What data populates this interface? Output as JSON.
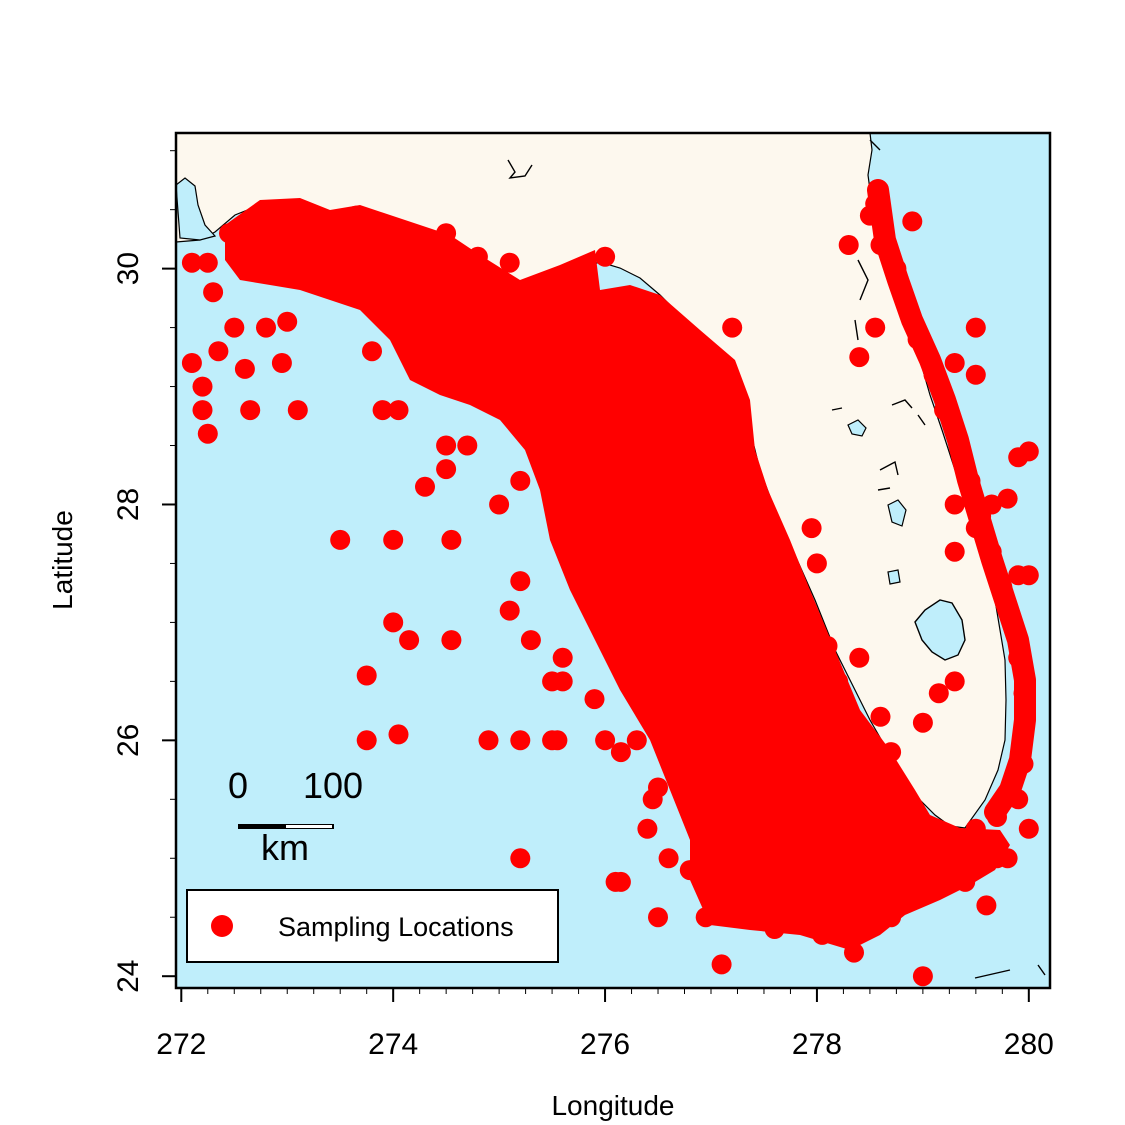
{
  "colors": {
    "sea": "#bfeefb",
    "land": "#fdf8ee",
    "point": "#ff0000",
    "coast": "#000000"
  },
  "axes": {
    "xlabel": "Longitude",
    "ylabel": "Latitude",
    "xlim": [
      271.95,
      280.2
    ],
    "ylim": [
      23.9,
      31.15
    ],
    "xticks": [
      272,
      274,
      276,
      278,
      280
    ],
    "yticks": [
      24,
      26,
      28,
      30
    ],
    "xtick_labels": [
      "272",
      "274",
      "276",
      "278",
      "280"
    ],
    "ytick_labels": [
      "24",
      "26",
      "28",
      "30"
    ]
  },
  "scale_bar": {
    "label_start": "0",
    "label_end": "100",
    "unit": "km"
  },
  "legend": {
    "label": "Sampling Locations",
    "placement": "bottom-left"
  },
  "chart_data": {
    "type": "scatter",
    "title": "",
    "xlabel": "Longitude",
    "ylabel": "Latitude",
    "xlim": [
      271.95,
      280.2
    ],
    "ylim": [
      23.9,
      31.15
    ],
    "grid": false,
    "series": [
      {
        "name": "Sampling Locations",
        "points": [
          [
            272.1,
            29.2
          ],
          [
            272.2,
            29.0
          ],
          [
            272.2,
            28.8
          ],
          [
            272.25,
            28.6
          ],
          [
            272.35,
            29.3
          ],
          [
            272.1,
            30.05
          ],
          [
            272.25,
            30.05
          ],
          [
            272.3,
            29.8
          ],
          [
            272.5,
            29.5
          ],
          [
            272.6,
            29.15
          ],
          [
            272.65,
            28.8
          ],
          [
            272.8,
            29.5
          ],
          [
            272.95,
            29.2
          ],
          [
            273.1,
            28.8
          ],
          [
            273.0,
            29.55
          ],
          [
            273.5,
            27.7
          ],
          [
            274.0,
            27.7
          ],
          [
            274.55,
            27.7
          ],
          [
            274.0,
            27.0
          ],
          [
            274.15,
            26.85
          ],
          [
            273.75,
            26.55
          ],
          [
            273.75,
            26.0
          ],
          [
            274.05,
            26.05
          ],
          [
            274.55,
            26.85
          ],
          [
            274.9,
            26.0
          ],
          [
            275.2,
            26.0
          ],
          [
            275.5,
            26.0
          ],
          [
            275.55,
            26.0
          ],
          [
            275.2,
            25.0
          ],
          [
            276.1,
            24.8
          ],
          [
            276.15,
            24.8
          ],
          [
            276.5,
            24.5
          ],
          [
            277.1,
            24.1
          ],
          [
            279.0,
            24.0
          ],
          [
            274.3,
            28.15
          ],
          [
            274.5,
            28.3
          ],
          [
            274.5,
            28.5
          ],
          [
            274.7,
            28.5
          ],
          [
            275.0,
            28.0
          ],
          [
            275.2,
            28.2
          ],
          [
            273.9,
            28.8
          ],
          [
            274.05,
            28.8
          ],
          [
            275.1,
            27.1
          ],
          [
            275.2,
            27.35
          ],
          [
            275.3,
            26.85
          ],
          [
            275.5,
            26.5
          ],
          [
            275.6,
            26.5
          ],
          [
            275.6,
            26.7
          ],
          [
            276.0,
            26.0
          ],
          [
            276.3,
            26.0
          ],
          [
            276.5,
            25.6
          ],
          [
            276.4,
            25.25
          ],
          [
            276.6,
            25.0
          ],
          [
            276.45,
            25.5
          ],
          [
            276.9,
            25.1
          ],
          [
            277.0,
            24.65
          ],
          [
            277.2,
            24.7
          ],
          [
            278.7,
            25.9
          ],
          [
            279.0,
            26.15
          ],
          [
            279.3,
            26.5
          ],
          [
            279.15,
            26.4
          ],
          [
            279.6,
            24.6
          ],
          [
            279.4,
            24.8
          ],
          [
            279.8,
            25.0
          ],
          [
            280.0,
            25.25
          ],
          [
            278.4,
            29.25
          ],
          [
            278.55,
            29.5
          ],
          [
            279.5,
            29.5
          ],
          [
            279.3,
            29.2
          ],
          [
            279.5,
            29.1
          ],
          [
            279.3,
            28.0
          ],
          [
            279.5,
            27.8
          ],
          [
            279.3,
            27.6
          ],
          [
            279.8,
            28.05
          ],
          [
            279.9,
            28.4
          ],
          [
            280.0,
            28.45
          ],
          [
            279.65,
            28.0
          ],
          [
            279.9,
            27.4
          ],
          [
            280.0,
            27.4
          ],
          [
            274.5,
            30.3
          ],
          [
            274.8,
            30.1
          ],
          [
            275.1,
            30.05
          ],
          [
            277.2,
            29.5
          ],
          [
            277.95,
            27.8
          ],
          [
            278.0,
            27.5
          ],
          [
            277.9,
            27.0
          ],
          [
            278.1,
            26.8
          ],
          [
            278.4,
            26.7
          ],
          [
            277.7,
            27.35
          ],
          [
            278.2,
            26.5
          ],
          [
            278.6,
            26.2
          ],
          [
            278.4,
            25.9
          ],
          [
            278.9,
            25.2
          ],
          [
            279.0,
            24.9
          ],
          [
            278.7,
            24.5
          ],
          [
            278.35,
            24.2
          ],
          [
            278.05,
            24.35
          ],
          [
            277.6,
            24.4
          ],
          [
            277.3,
            24.5
          ],
          [
            276.95,
            24.5
          ],
          [
            276.8,
            24.9
          ],
          [
            277.1,
            25.3
          ],
          [
            277.55,
            25.4
          ],
          [
            277.85,
            25.25
          ],
          [
            278.1,
            25.0
          ],
          [
            278.5,
            24.85
          ],
          [
            278.8,
            24.7
          ],
          [
            279.1,
            24.95
          ],
          [
            279.3,
            25.05
          ],
          [
            279.5,
            24.95
          ],
          [
            279.7,
            25.0
          ],
          [
            277.4,
            25.9
          ],
          [
            277.7,
            25.6
          ],
          [
            277.25,
            26.2
          ],
          [
            277.0,
            26.5
          ],
          [
            276.7,
            26.8
          ],
          [
            276.8,
            27.2
          ],
          [
            277.1,
            27.0
          ],
          [
            277.4,
            26.6
          ],
          [
            277.55,
            27.1
          ],
          [
            277.3,
            27.5
          ],
          [
            277.0,
            27.8
          ],
          [
            276.55,
            27.5
          ],
          [
            276.25,
            27.1
          ],
          [
            276.0,
            27.4
          ],
          [
            275.8,
            27.7
          ],
          [
            276.3,
            27.9
          ],
          [
            276.7,
            28.2
          ],
          [
            277.0,
            28.5
          ],
          [
            277.25,
            28.8
          ],
          [
            276.95,
            29.05
          ],
          [
            276.5,
            29.3
          ],
          [
            276.25,
            28.8
          ],
          [
            276.05,
            28.4
          ],
          [
            275.7,
            28.1
          ],
          [
            275.55,
            28.5
          ],
          [
            275.8,
            28.9
          ],
          [
            276.0,
            29.2
          ],
          [
            275.6,
            29.35
          ],
          [
            275.25,
            29.4
          ],
          [
            275.1,
            29.1
          ],
          [
            274.95,
            29.5
          ],
          [
            274.6,
            29.35
          ],
          [
            274.3,
            29.7
          ],
          [
            274.0,
            29.6
          ],
          [
            273.8,
            29.3
          ],
          [
            273.7,
            29.75
          ],
          [
            273.35,
            29.85
          ],
          [
            273.0,
            30.0
          ],
          [
            272.7,
            30.15
          ],
          [
            272.45,
            30.3
          ],
          [
            272.8,
            30.45
          ],
          [
            273.25,
            30.35
          ],
          [
            273.65,
            30.45
          ],
          [
            274.1,
            30.25
          ],
          [
            274.35,
            30.0
          ],
          [
            274.7,
            29.85
          ],
          [
            275.3,
            29.75
          ],
          [
            275.7,
            29.8
          ],
          [
            276.0,
            30.1
          ],
          [
            276.3,
            29.75
          ],
          [
            276.55,
            29.45
          ],
          [
            276.85,
            29.3
          ],
          [
            277.25,
            28.25
          ],
          [
            277.4,
            27.9
          ],
          [
            276.2,
            26.6
          ],
          [
            276.5,
            26.3
          ],
          [
            276.9,
            26.0
          ],
          [
            277.2,
            25.7
          ],
          [
            277.9,
            25.85
          ],
          [
            278.2,
            25.55
          ],
          [
            278.6,
            25.4
          ],
          [
            276.15,
            25.9
          ],
          [
            276.35,
            27.4
          ],
          [
            275.9,
            26.35
          ],
          [
            278.5,
            30.45
          ],
          [
            278.6,
            30.2
          ],
          [
            278.75,
            30.0
          ],
          [
            278.85,
            29.7
          ],
          [
            278.95,
            29.4
          ],
          [
            279.1,
            29.1
          ],
          [
            279.2,
            28.8
          ],
          [
            279.35,
            28.5
          ],
          [
            279.45,
            28.2
          ],
          [
            279.55,
            27.9
          ],
          [
            279.65,
            27.6
          ],
          [
            279.75,
            27.3
          ],
          [
            279.85,
            27.0
          ],
          [
            279.9,
            26.7
          ],
          [
            279.95,
            26.4
          ],
          [
            279.95,
            26.1
          ],
          [
            279.95,
            25.8
          ],
          [
            279.9,
            25.5
          ],
          [
            279.7,
            25.35
          ],
          [
            279.5,
            25.25
          ],
          [
            278.3,
            30.2
          ],
          [
            278.55,
            30.55
          ],
          [
            278.9,
            30.4
          ]
        ]
      }
    ]
  }
}
